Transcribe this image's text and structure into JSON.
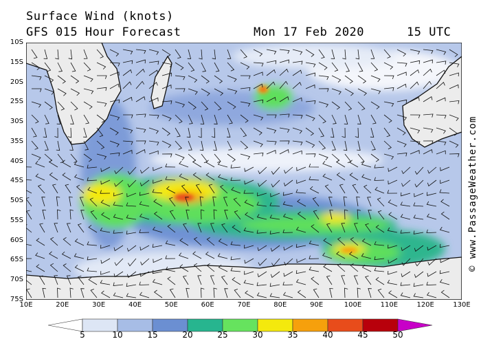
{
  "header": {
    "title": "Surface Wind (knots)",
    "forecast": "GFS 015 Hour Forecast",
    "date": "Mon 17 Feb 2020",
    "time": "15 UTC"
  },
  "credit": "© www.PassageWeather.com",
  "map": {
    "lon_range": [
      10,
      130
    ],
    "lat_range": [
      -10,
      -75
    ],
    "lat_labels": [
      "10S",
      "15S",
      "20S",
      "25S",
      "30S",
      "35S",
      "40S",
      "45S",
      "50S",
      "55S",
      "60S",
      "65S",
      "70S",
      "75S"
    ],
    "lon_labels": [
      "10E",
      "20E",
      "30E",
      "40E",
      "50E",
      "60E",
      "70E",
      "80E",
      "90E",
      "100E",
      "110E",
      "120E",
      "130E"
    ],
    "land_color": "#e9e9e9",
    "ocean_base_color": "#c9d6ee"
  },
  "colorbar": {
    "labels": [
      "5",
      "10",
      "15",
      "20",
      "25",
      "30",
      "35",
      "40",
      "45",
      "50"
    ],
    "colors": [
      "#ffffff",
      "#dde6f5",
      "#a7bde6",
      "#6b8fd2",
      "#27b58f",
      "#66e35e",
      "#f4e90d",
      "#f6a00c",
      "#e84c1b",
      "#b8000b",
      "#c800c8"
    ]
  }
}
